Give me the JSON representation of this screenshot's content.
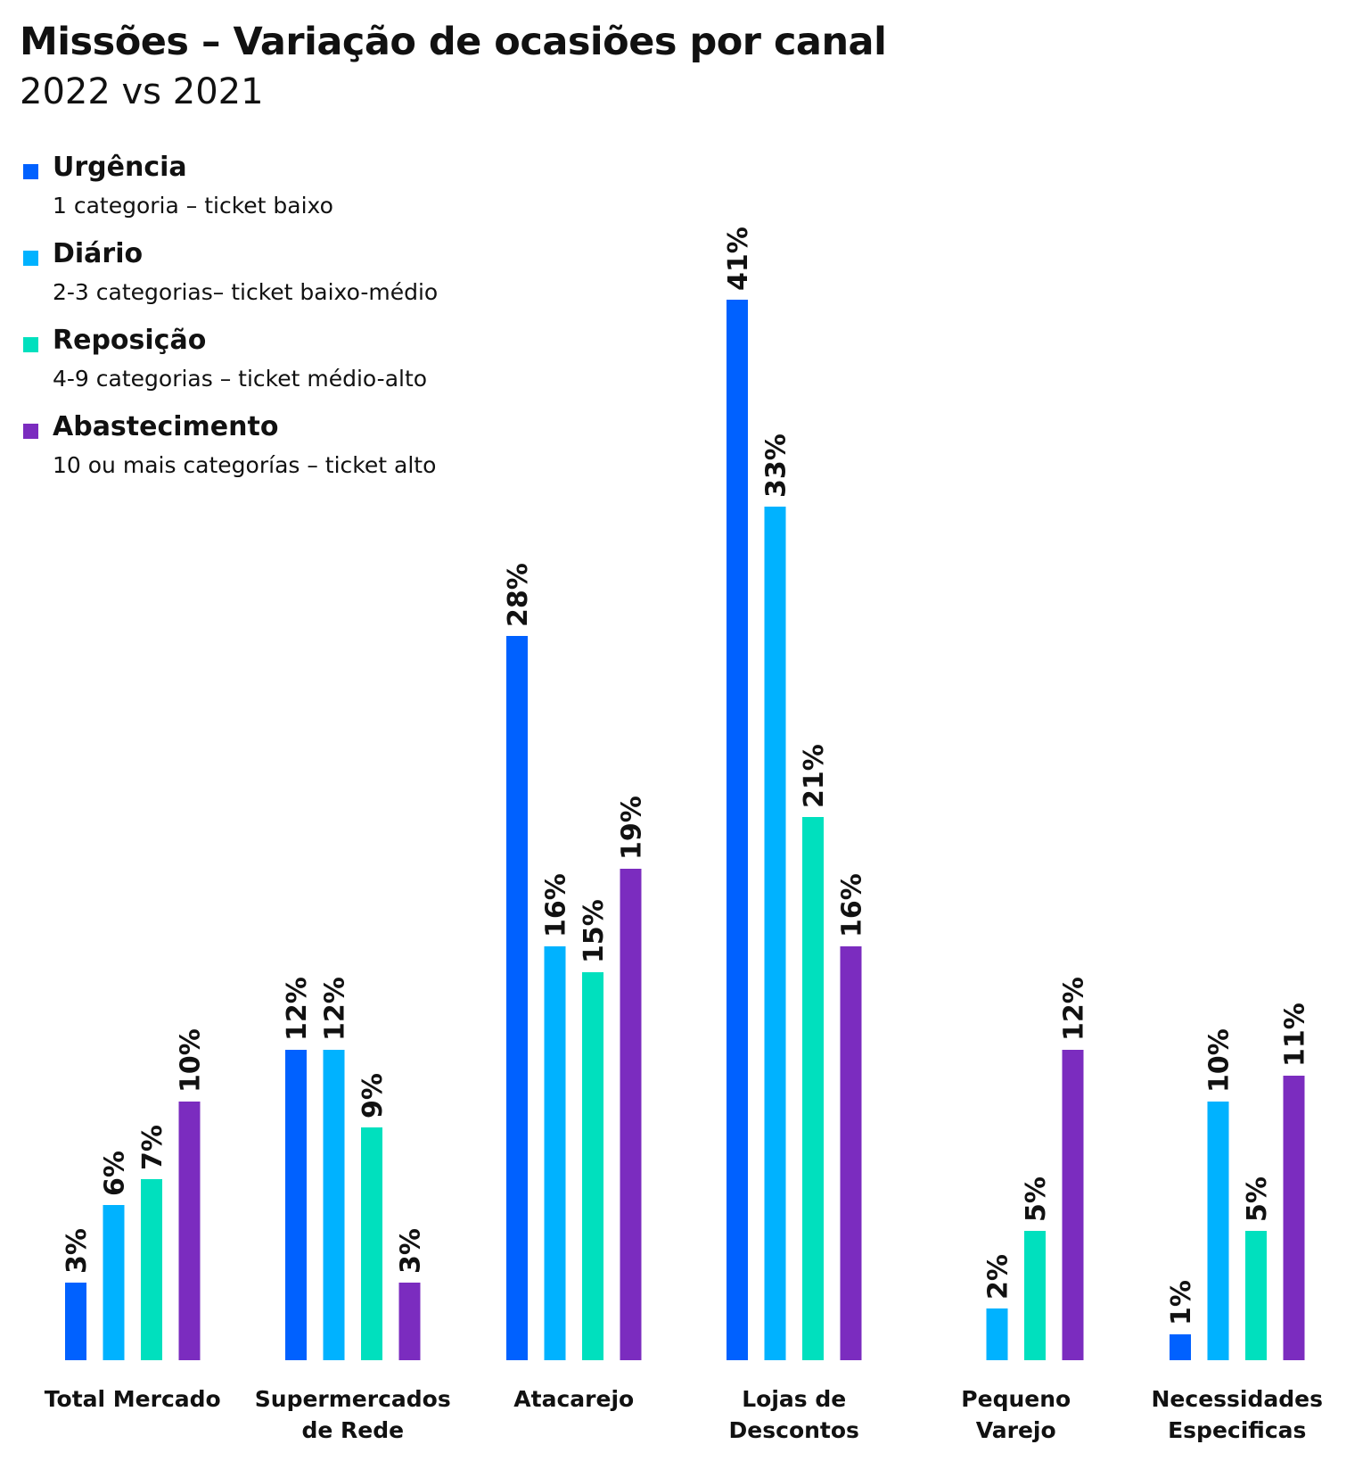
{
  "title": "Missões – Variação de ocasiões por canal",
  "subtitle": "2022 vs 2021",
  "legend": [
    {
      "name": "Urgência",
      "description": "1 categoria – ticket baixo",
      "color": "#0061FF"
    },
    {
      "name": "Diário",
      "description": "2-3 categorias– ticket baixo-médio",
      "color": "#00B2FF"
    },
    {
      "name": "Reposição",
      "description": "4-9 categorias – ticket médio-alto",
      "color": "#00E0BE"
    },
    {
      "name": "Abastecimento",
      "description": "10 ou mais categorías – ticket alto",
      "color": "#7B2CBF"
    }
  ],
  "chart_data": {
    "type": "bar",
    "categories": [
      [
        "Total Mercado"
      ],
      [
        "Supermercados",
        "de Rede"
      ],
      [
        "Atacarejo"
      ],
      [
        "Lojas de",
        "Descontos"
      ],
      [
        "Pequeno",
        "Varejo"
      ],
      [
        "Necessidades",
        "Especificas"
      ]
    ],
    "series": [
      {
        "name": "Urgência",
        "color": "#0061FF",
        "values": [
          3,
          12,
          28,
          41,
          null,
          1
        ],
        "labels": [
          "3%",
          "12%",
          "28%",
          "41%",
          "",
          "1%"
        ]
      },
      {
        "name": "Diário",
        "color": "#00B2FF",
        "values": [
          6,
          12,
          16,
          33,
          2,
          10
        ],
        "labels": [
          "6%",
          "12%",
          "16%",
          "33%",
          "2%",
          "10%"
        ]
      },
      {
        "name": "Reposição",
        "color": "#00E0BE",
        "values": [
          7,
          9,
          15,
          21,
          5,
          5
        ],
        "labels": [
          "7%",
          "9%",
          "15%",
          "21%",
          "5%",
          "5%"
        ]
      },
      {
        "name": "Abastecimento",
        "color": "#7B2CBF",
        "values": [
          10,
          3,
          19,
          16,
          12,
          11
        ],
        "labels": [
          "10%",
          "3%",
          "19%",
          "16%",
          "12%",
          "11%"
        ]
      }
    ],
    "ylim": [
      0,
      41
    ],
    "grid": false,
    "legend_position": "top-left"
  }
}
